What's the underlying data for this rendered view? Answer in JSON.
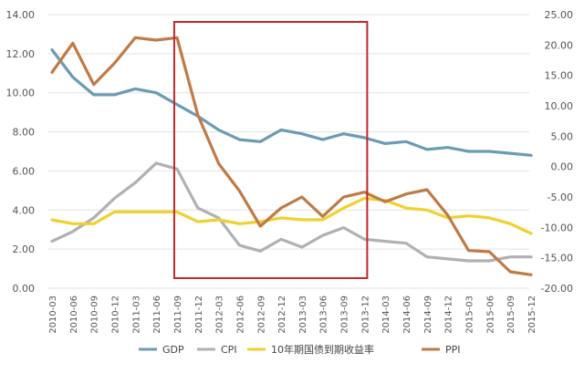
{
  "chart_data": {
    "type": "line",
    "title": "",
    "x": [
      "2010-03",
      "2010-06",
      "2010-09",
      "2010-12",
      "2011-03",
      "2011-06",
      "2011-09",
      "2011-12",
      "2012-03",
      "2012-06",
      "2012-09",
      "2012-12",
      "2013-03",
      "2013-06",
      "2013-09",
      "2013-12",
      "2014-03",
      "2014-06",
      "2014-09",
      "2014-12",
      "2015-03",
      "2015-06",
      "2015-09",
      "2015-12"
    ],
    "left_axis": {
      "ylim": [
        0,
        14
      ],
      "ticks": [
        "0.00",
        "2.00",
        "4.00",
        "6.00",
        "8.00",
        "10.00",
        "12.00",
        "14.00"
      ]
    },
    "right_axis": {
      "ylim": [
        -20,
        25
      ],
      "ticks": [
        "-20.00",
        "-15.00",
        "-10.00",
        "-5.00",
        "0.00",
        "5.00",
        "10.00",
        "15.00",
        "20.00",
        "25.00"
      ]
    },
    "series": [
      {
        "name": "GDP",
        "axis": "left",
        "color": "#6b9bb5",
        "values": [
          12.2,
          10.8,
          9.9,
          9.9,
          10.2,
          10.0,
          9.4,
          8.8,
          8.1,
          7.6,
          7.5,
          8.1,
          7.9,
          7.6,
          7.9,
          7.7,
          7.4,
          7.5,
          7.1,
          7.2,
          7.0,
          7.0,
          6.9,
          6.8
        ]
      },
      {
        "name": "CPI",
        "axis": "left",
        "color": "#b1b1b5",
        "values": [
          2.4,
          2.9,
          3.6,
          4.6,
          5.4,
          6.4,
          6.1,
          4.1,
          3.6,
          2.2,
          1.9,
          2.5,
          2.1,
          2.7,
          3.1,
          2.5,
          2.4,
          2.3,
          1.6,
          1.5,
          1.4,
          1.4,
          1.6,
          1.6
        ]
      },
      {
        "name": "10年期国债到期收益率",
        "axis": "left",
        "color": "#f0d12e",
        "values": [
          3.5,
          3.3,
          3.3,
          3.9,
          3.9,
          3.9,
          3.9,
          3.4,
          3.5,
          3.3,
          3.4,
          3.6,
          3.5,
          3.5,
          4.1,
          4.6,
          4.5,
          4.1,
          4.0,
          3.6,
          3.7,
          3.6,
          3.3,
          2.8
        ]
      },
      {
        "name": "PPI",
        "axis": "right",
        "color": "#c07a46",
        "values": [
          15.5,
          20.3,
          13.5,
          17.0,
          21.2,
          20.8,
          21.2,
          8.5,
          0.5,
          -4.0,
          -9.8,
          -6.8,
          -5.0,
          -8.2,
          -5.0,
          -4.2,
          -5.8,
          -4.5,
          -3.8,
          -8.0,
          -13.8,
          -14.0,
          -17.3,
          -17.8
        ]
      }
    ],
    "legend": {
      "position": "bottom"
    },
    "highlight": {
      "from": "2011-09",
      "to": "2013-12",
      "color": "#c0282d"
    }
  }
}
